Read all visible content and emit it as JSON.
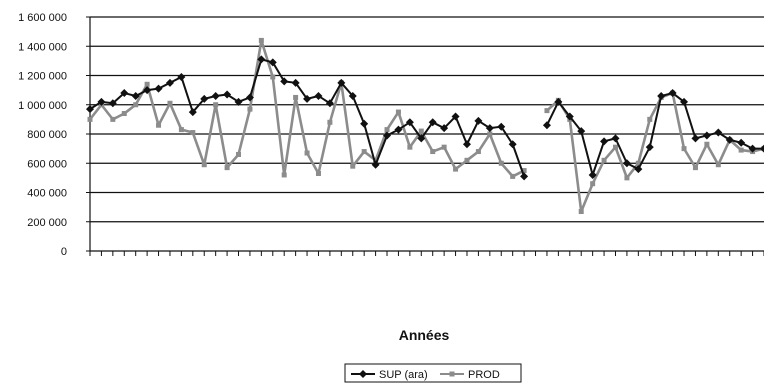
{
  "chart_data": {
    "type": "line",
    "title": "",
    "xlabel": "Années",
    "ylabel": "",
    "ylim": [
      0,
      1600000
    ],
    "ytick_values": [
      0,
      200000,
      400000,
      600000,
      800000,
      1000000,
      1200000,
      1400000,
      1600000
    ],
    "ytick_labels": [
      "0",
      "200 000",
      "400 000",
      "600 000",
      "800 000",
      "1 000 000",
      "1 200 000",
      "1 400 000",
      "1 600 000"
    ],
    "grid": true,
    "legend_position": "bottom-center",
    "x_points": 60,
    "series": [
      {
        "name": "SUP (ara)",
        "color": "#111111",
        "marker": "diamond",
        "values": [
          970000,
          1020000,
          1010000,
          1080000,
          1060000,
          1100000,
          1110000,
          1150000,
          1190000,
          950000,
          1040000,
          1060000,
          1070000,
          1020000,
          1050000,
          1310000,
          1290000,
          1160000,
          1150000,
          1040000,
          1060000,
          1010000,
          1150000,
          1060000,
          870000,
          590000,
          790000,
          830000,
          880000,
          770000,
          880000,
          840000,
          920000,
          730000,
          890000,
          840000,
          850000,
          730000,
          510000,
          null,
          860000,
          1020000,
          920000,
          820000,
          520000,
          750000,
          770000,
          600000,
          560000,
          710000,
          1060000,
          1080000,
          1020000,
          770000,
          790000,
          810000,
          760000,
          740000,
          700000,
          700000
        ]
      },
      {
        "name": "PROD",
        "color": "#8c8c8c",
        "marker": "square",
        "values": [
          900000,
          1000000,
          900000,
          940000,
          1000000,
          1140000,
          860000,
          1010000,
          830000,
          810000,
          590000,
          1000000,
          570000,
          660000,
          970000,
          1440000,
          1190000,
          520000,
          1050000,
          670000,
          530000,
          880000,
          1150000,
          580000,
          680000,
          620000,
          830000,
          950000,
          710000,
          820000,
          680000,
          710000,
          560000,
          620000,
          680000,
          800000,
          600000,
          510000,
          550000,
          null,
          960000,
          1030000,
          900000,
          270000,
          460000,
          620000,
          710000,
          500000,
          600000,
          900000,
          1050000,
          1080000,
          700000,
          570000,
          730000,
          590000,
          760000,
          690000,
          680000,
          700000
        ]
      }
    ]
  }
}
